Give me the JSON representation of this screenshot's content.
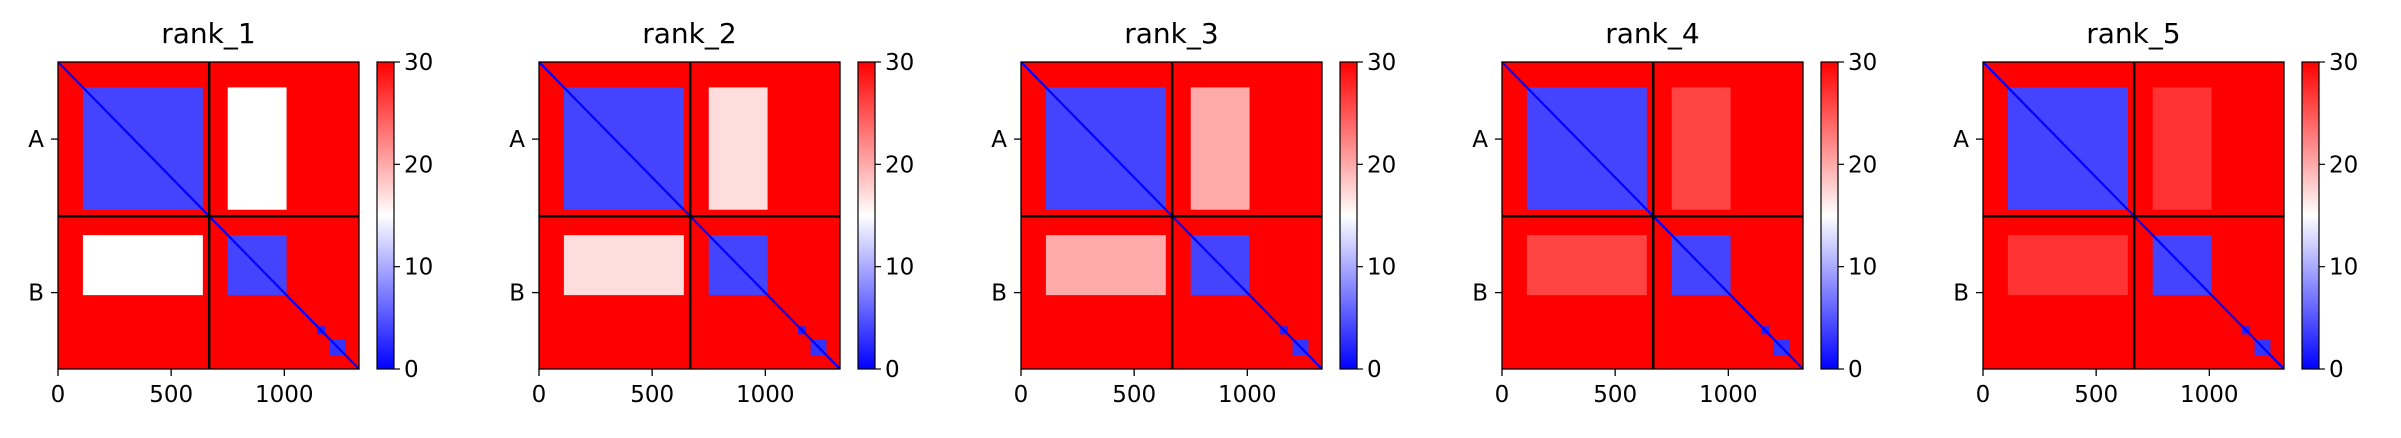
{
  "figure": {
    "colormap": {
      "low": "#0000ff",
      "mid": "#ffffff",
      "high": "#ff0000"
    },
    "chains": [
      "A",
      "B"
    ],
    "chain_break": 668,
    "total_length": 1330
  },
  "chart_data": [
    {
      "type": "heatmap",
      "title": "rank_1",
      "xlim": [
        0,
        1330
      ],
      "ylim": [
        1330,
        0
      ],
      "xticks": [
        0,
        500,
        1000
      ],
      "xtick_labels": [
        "0",
        "500",
        "1000"
      ],
      "yticks": [
        334,
        999
      ],
      "ytick_labels": [
        "A",
        "B"
      ],
      "clim": [
        0,
        30
      ],
      "colorbar_ticks": [
        0,
        10,
        20,
        30
      ],
      "colorbar_tick_labels": [
        "0",
        "10",
        "20",
        "30"
      ],
      "chain_break": 668,
      "domains": [
        {
          "range": [
            110,
            640
          ],
          "value": 4,
          "inter_A_B": 15
        },
        {
          "range": [
            750,
            1010
          ],
          "value": 4
        },
        {
          "range": [
            1145,
            1180
          ],
          "value": 2
        },
        {
          "range": [
            1200,
            1270
          ],
          "value": 3
        }
      ]
    },
    {
      "type": "heatmap",
      "title": "rank_2",
      "xlim": [
        0,
        1330
      ],
      "ylim": [
        1330,
        0
      ],
      "xticks": [
        0,
        500,
        1000
      ],
      "xtick_labels": [
        "0",
        "500",
        "1000"
      ],
      "yticks": [
        334,
        999
      ],
      "ytick_labels": [
        "A",
        "B"
      ],
      "clim": [
        0,
        30
      ],
      "colorbar_ticks": [
        0,
        10,
        20,
        30
      ],
      "colorbar_tick_labels": [
        "0",
        "10",
        "20",
        "30"
      ],
      "chain_break": 668,
      "domains": [
        {
          "range": [
            110,
            640
          ],
          "value": 4,
          "inter_A_B": 17
        },
        {
          "range": [
            750,
            1010
          ],
          "value": 4
        },
        {
          "range": [
            1145,
            1180
          ],
          "value": 2
        },
        {
          "range": [
            1200,
            1270
          ],
          "value": 3
        }
      ]
    },
    {
      "type": "heatmap",
      "title": "rank_3",
      "xlim": [
        0,
        1330
      ],
      "ylim": [
        1330,
        0
      ],
      "xticks": [
        0,
        500,
        1000
      ],
      "xtick_labels": [
        "0",
        "500",
        "1000"
      ],
      "yticks": [
        334,
        999
      ],
      "ytick_labels": [
        "A",
        "B"
      ],
      "clim": [
        0,
        30
      ],
      "colorbar_ticks": [
        0,
        10,
        20,
        30
      ],
      "colorbar_tick_labels": [
        "0",
        "10",
        "20",
        "30"
      ],
      "chain_break": 668,
      "domains": [
        {
          "range": [
            110,
            640
          ],
          "value": 4,
          "inter_A_B": 20
        },
        {
          "range": [
            750,
            1010
          ],
          "value": 4
        },
        {
          "range": [
            1145,
            1180
          ],
          "value": 2
        },
        {
          "range": [
            1200,
            1270
          ],
          "value": 3
        }
      ]
    },
    {
      "type": "heatmap",
      "title": "rank_4",
      "xlim": [
        0,
        1330
      ],
      "ylim": [
        1330,
        0
      ],
      "xticks": [
        0,
        500,
        1000
      ],
      "xtick_labels": [
        "0",
        "500",
        "1000"
      ],
      "yticks": [
        334,
        999
      ],
      "ytick_labels": [
        "A",
        "B"
      ],
      "clim": [
        0,
        30
      ],
      "colorbar_ticks": [
        0,
        10,
        20,
        30
      ],
      "colorbar_tick_labels": [
        "0",
        "10",
        "20",
        "30"
      ],
      "chain_break": 668,
      "domains": [
        {
          "range": [
            110,
            640
          ],
          "value": 4,
          "inter_A_B": 26
        },
        {
          "range": [
            750,
            1010
          ],
          "value": 4
        },
        {
          "range": [
            1145,
            1180
          ],
          "value": 2
        },
        {
          "range": [
            1200,
            1270
          ],
          "value": 3
        }
      ]
    },
    {
      "type": "heatmap",
      "title": "rank_5",
      "xlim": [
        0,
        1330
      ],
      "ylim": [
        1330,
        0
      ],
      "xticks": [
        0,
        500,
        1000
      ],
      "xtick_labels": [
        "0",
        "500",
        "1000"
      ],
      "yticks": [
        334,
        999
      ],
      "ytick_labels": [
        "A",
        "B"
      ],
      "clim": [
        0,
        30
      ],
      "colorbar_ticks": [
        0,
        10,
        20,
        30
      ],
      "colorbar_tick_labels": [
        "0",
        "10",
        "20",
        "30"
      ],
      "chain_break": 668,
      "domains": [
        {
          "range": [
            110,
            640
          ],
          "value": 4,
          "inter_A_B": 27
        },
        {
          "range": [
            750,
            1010
          ],
          "value": 4
        },
        {
          "range": [
            1145,
            1180
          ],
          "value": 2
        },
        {
          "range": [
            1200,
            1270
          ],
          "value": 3
        }
      ]
    }
  ]
}
